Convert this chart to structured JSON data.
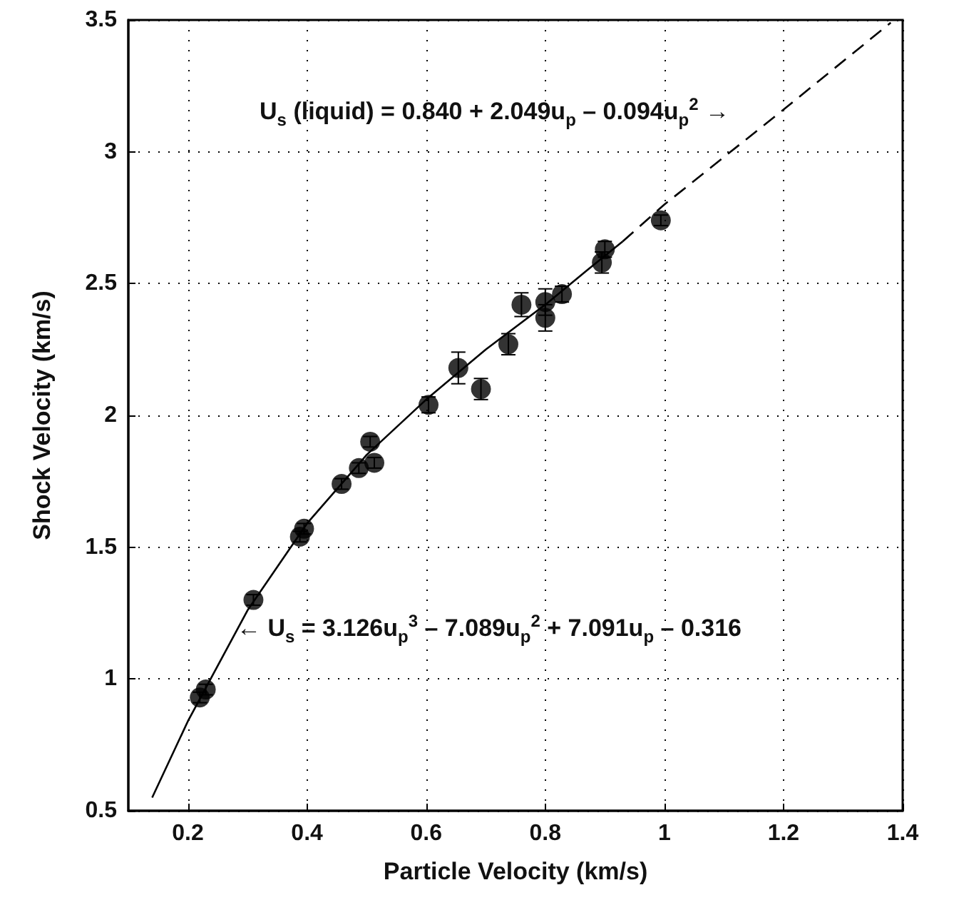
{
  "chart_data": {
    "type": "scatter",
    "xlabel": "Particle Velocity (km/s)",
    "ylabel": "Shock Velocity (km/s)",
    "xlim": [
      0.1,
      1.4
    ],
    "xticks": [
      0.2,
      0.4,
      0.6,
      0.8,
      1,
      1.2,
      1.4
    ],
    "ylim": [
      0.5,
      3.5
    ],
    "yticks": [
      0.5,
      1,
      1.5,
      2,
      2.5,
      3,
      3.5
    ],
    "grid": true,
    "series": [
      {
        "color": "#000000",
        "marker": "circle",
        "x": [
          0.22,
          0.23,
          0.31,
          0.388,
          0.395,
          0.458,
          0.487,
          0.506,
          0.513,
          0.604,
          0.654,
          0.692,
          0.738,
          0.76,
          0.8,
          0.8,
          0.828,
          0.895,
          0.9,
          0.994
        ],
        "values": [
          0.93,
          0.96,
          1.3,
          1.54,
          1.57,
          1.74,
          1.8,
          1.9,
          1.82,
          2.04,
          2.18,
          2.1,
          2.27,
          2.42,
          2.43,
          2.37,
          2.46,
          2.58,
          2.63,
          2.74
        ],
        "errors": [
          0.02,
          0.02,
          0.02,
          0.02,
          0.02,
          0.02,
          0.02,
          0.02,
          0.02,
          0.03,
          0.06,
          0.04,
          0.04,
          0.045,
          0.05,
          0.05,
          0.03,
          0.04,
          0.03,
          0.02
        ]
      },
      {
        "type": "line",
        "color": "#000000",
        "marker": "none",
        "line_style": "solid",
        "x": [
          0.14,
          0.2,
          0.3,
          0.4,
          0.5,
          0.6,
          0.7,
          0.8,
          0.87,
          0.93
        ],
        "values": [
          0.55,
          0.84,
          1.26,
          1.59,
          1.85,
          2.06,
          2.25,
          2.42,
          2.55,
          2.66
        ]
      },
      {
        "type": "line",
        "color": "#000000",
        "marker": "none",
        "line_style": "dashed",
        "x": [
          0.93,
          1.0,
          1.2,
          1.38
        ],
        "values": [
          2.66,
          2.8,
          3.16,
          3.49
        ]
      }
    ],
    "annotations": [
      "U$_{s}$ (liquid) = 0.840 + 2.049u$_{p}$ – 0.094u$_{p}$$^{2}$ →",
      "← U$_{s}$ = 3.126u$_{p}$$^{3}$ – 7.089u$_{p}$$^{2}$ + 7.091u$_{p}$ – 0.316"
    ]
  }
}
